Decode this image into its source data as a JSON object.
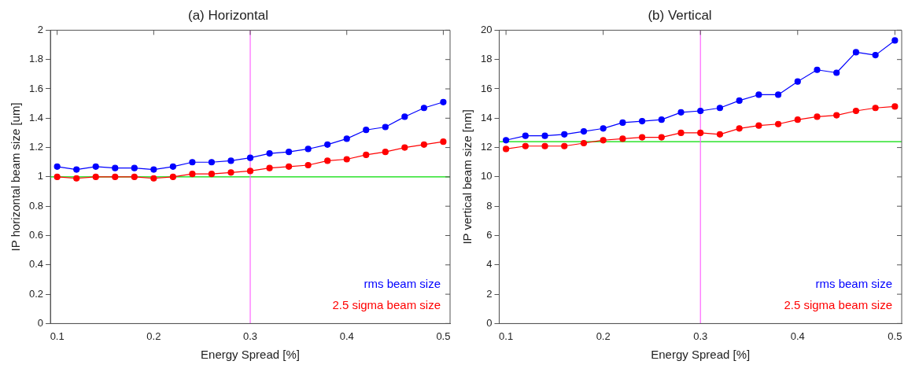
{
  "chart_data": [
    {
      "type": "line",
      "title": "(a) Horizontal",
      "xlabel": "Energy Spread [%]",
      "ylabel": "IP horizontal beam size [um]",
      "x": [
        0.1,
        0.12,
        0.14,
        0.16,
        0.18,
        0.2,
        0.22,
        0.24,
        0.26,
        0.28,
        0.3,
        0.32,
        0.34,
        0.36,
        0.38,
        0.4,
        0.42,
        0.44,
        0.46,
        0.48,
        0.5
      ],
      "series": [
        {
          "name": "rms beam size",
          "color": "#0000ff",
          "values": [
            1.07,
            1.05,
            1.07,
            1.06,
            1.06,
            1.05,
            1.07,
            1.1,
            1.1,
            1.11,
            1.13,
            1.16,
            1.17,
            1.19,
            1.22,
            1.26,
            1.32,
            1.34,
            1.41,
            1.47,
            1.51
          ]
        },
        {
          "name": "2.5 sigma beam size",
          "color": "#ff0000",
          "values": [
            1.0,
            0.99,
            1.0,
            1.0,
            1.0,
            0.99,
            1.0,
            1.02,
            1.02,
            1.03,
            1.04,
            1.06,
            1.07,
            1.08,
            1.11,
            1.12,
            1.15,
            1.17,
            1.2,
            1.22,
            1.24
          ]
        }
      ],
      "xlim": [
        0.093,
        0.507
      ],
      "xticks": [
        0.1,
        0.2,
        0.3,
        0.4,
        0.5
      ],
      "ylim": [
        0,
        2
      ],
      "yticks": [
        0,
        0.2,
        0.4,
        0.6,
        0.8,
        1,
        1.2,
        1.4,
        1.6,
        1.8,
        2
      ],
      "ref_lines": [
        {
          "axis": "y",
          "value": 1,
          "color": "#00dd00"
        },
        {
          "axis": "x",
          "value": 0.3,
          "color": "#ff66ff"
        }
      ],
      "legend": "bottom right",
      "marker": "circle",
      "grid": false
    },
    {
      "type": "line",
      "title": "(b) Vertical",
      "xlabel": "Energy Spread [%]",
      "ylabel": "IP vertical beam size [nm]",
      "x": [
        0.1,
        0.12,
        0.14,
        0.16,
        0.18,
        0.2,
        0.22,
        0.24,
        0.26,
        0.28,
        0.3,
        0.32,
        0.34,
        0.36,
        0.38,
        0.4,
        0.42,
        0.44,
        0.46,
        0.48,
        0.5
      ],
      "series": [
        {
          "name": "rms beam size",
          "color": "#0000ff",
          "values": [
            12.5,
            12.8,
            12.8,
            12.9,
            13.1,
            13.3,
            13.7,
            13.8,
            13.9,
            14.4,
            14.5,
            14.7,
            15.2,
            15.6,
            15.6,
            16.5,
            17.3,
            17.1,
            18.5,
            18.3,
            19.3
          ]
        },
        {
          "name": "2.5 sigma beam size",
          "color": "#ff0000",
          "values": [
            11.9,
            12.1,
            12.1,
            12.1,
            12.3,
            12.5,
            12.6,
            12.7,
            12.7,
            13.0,
            13.0,
            12.9,
            13.3,
            13.5,
            13.6,
            13.9,
            14.1,
            14.2,
            14.5,
            14.7,
            14.8
          ]
        }
      ],
      "xlim": [
        0.093,
        0.507
      ],
      "xticks": [
        0.1,
        0.2,
        0.3,
        0.4,
        0.5
      ],
      "ylim": [
        0,
        20
      ],
      "yticks": [
        0,
        2,
        4,
        6,
        8,
        10,
        12,
        14,
        16,
        18,
        20
      ],
      "ref_lines": [
        {
          "axis": "y",
          "value": 12.4,
          "color": "#00dd00"
        },
        {
          "axis": "x",
          "value": 0.3,
          "color": "#ff66ff"
        }
      ],
      "legend": "bottom right",
      "marker": "circle",
      "grid": false
    }
  ]
}
